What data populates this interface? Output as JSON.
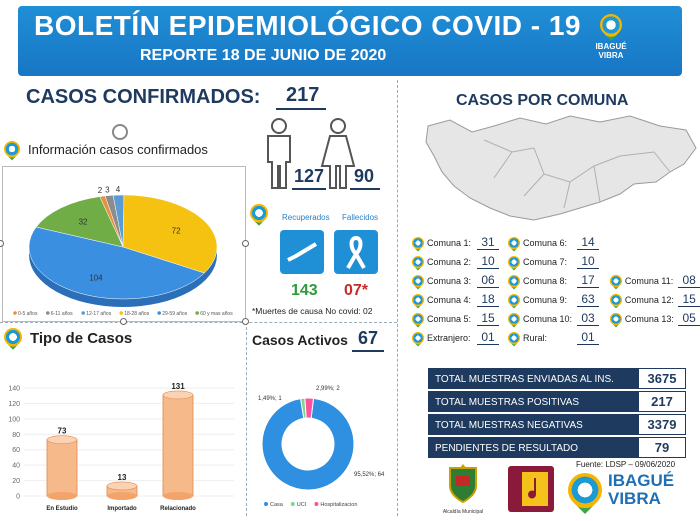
{
  "header": {
    "title": "BOLETÍN EPIDEMIOLÓGICO COVID - 19",
    "subtitle": "REPORTE 18 DE JUNIO DE 2020",
    "brand_line1": "IBAGUÉ",
    "brand_line2": "VIBRA"
  },
  "confirmados": {
    "label": "CASOS CONFIRMADOS:",
    "value": "217",
    "info_label": "Información casos confirmados",
    "hombres": "127",
    "mujeres": "90"
  },
  "age_pie": {
    "type": "pie",
    "labels": [
      "0-5 años",
      "6-11 años",
      "12-17 años",
      "18-28 años",
      "29-59 años",
      "60 y mas años"
    ],
    "values": [
      2,
      3,
      4,
      72,
      104,
      32
    ],
    "data_labels": [
      "2",
      "3",
      "4",
      "72",
      "104",
      "32"
    ],
    "colors": [
      "#e8913c",
      "#8c8c8c",
      "#5b9bd5",
      "#f5c211",
      "#3b8fe0",
      "#70ad47"
    ]
  },
  "recuperados": {
    "label": "Recuperados",
    "value": "143"
  },
  "fallecidos": {
    "label": "Fallecidos",
    "value": "07*"
  },
  "nota": "*Muertes de causa No covid: 02",
  "tipo": {
    "title": "Tipo de Casos",
    "y_ticks": [
      "140",
      "120",
      "100",
      "80",
      "60",
      "40",
      "20",
      "0"
    ]
  },
  "activos": {
    "label": "Casos Activos",
    "value": "67",
    "slice_labels": [
      "1,49%; 1",
      "2,99%; 2",
      "95,52%; 64"
    ],
    "legend": [
      "Casa",
      "UCI",
      "Hospitalizacion"
    ]
  },
  "comuna": {
    "title": "CASOS POR COMUNA",
    "items": [
      {
        "label": "Comuna 1:",
        "value": "31"
      },
      {
        "label": "Comuna 2:",
        "value": "10"
      },
      {
        "label": "Comuna 3:",
        "value": "06"
      },
      {
        "label": "Comuna 4:",
        "value": "18"
      },
      {
        "label": "Comuna 5:",
        "value": "15"
      },
      {
        "label": "Extranjero:",
        "value": "01"
      },
      {
        "label": "Comuna 6:",
        "value": "14"
      },
      {
        "label": "Comuna 7:",
        "value": "10"
      },
      {
        "label": "Comuna 8:",
        "value": "17"
      },
      {
        "label": "Comuna 9:",
        "value": "63"
      },
      {
        "label": "Comuna 10:",
        "value": "03"
      },
      {
        "label": "Rural:",
        "value": "01"
      },
      {
        "label": "Comuna 11:",
        "value": "08"
      },
      {
        "label": "Comuna 12:",
        "value": "15"
      },
      {
        "label": "Comuna 13:",
        "value": "05"
      }
    ]
  },
  "muestras": [
    {
      "label": "TOTAL MUESTRAS ENVIADAS AL INS.",
      "value": "3675"
    },
    {
      "label": "TOTAL MUESTRAS POSITIVAS",
      "value": "217"
    },
    {
      "label": "TOTAL MUESTRAS NEGATIVAS",
      "value": "3379"
    },
    {
      "label": "PENDIENTES DE RESULTADO",
      "value": "79"
    }
  ],
  "fuente": "Fuente: LDSP – 09/06/2020",
  "footer": {
    "alcaldia": "Alcaldía Municipal",
    "brand_line1": "IBAGUÉ",
    "brand_line2": "VIBRA"
  },
  "chart_data": [
    {
      "type": "pie",
      "categories": [
        "0-5 años",
        "6-11 años",
        "12-17 años",
        "18-28 años",
        "29-59 años",
        "60 y mas años"
      ],
      "values": [
        2,
        3,
        4,
        72,
        104,
        32
      ]
    },
    {
      "type": "bar",
      "categories": [
        "En Estudio",
        "Importado",
        "Relacionado"
      ],
      "values": [
        73,
        13,
        131
      ],
      "ylim": [
        0,
        140
      ],
      "yticks": [
        0,
        20,
        40,
        60,
        80,
        100,
        120,
        140
      ]
    },
    {
      "type": "pie",
      "categories": [
        "Casa",
        "UCI",
        "Hospitalizacion"
      ],
      "values": [
        64,
        1,
        2
      ],
      "data_labels": [
        "95,52%; 64",
        "1,49%; 1",
        "2,99%; 2"
      ]
    }
  ]
}
